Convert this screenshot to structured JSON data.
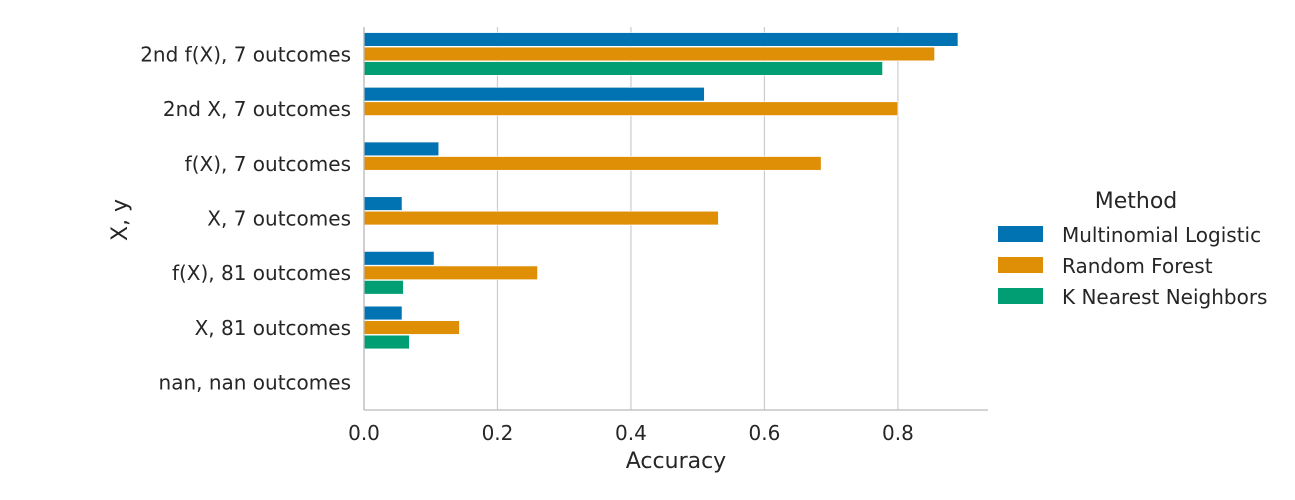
{
  "chart_data": {
    "type": "bar",
    "orientation": "horizontal",
    "categories": [
      "2nd f(X), 7 outcomes",
      "2nd X, 7 outcomes",
      "f(X), 7 outcomes",
      "X, 7 outcomes",
      "f(X), 81 outcomes",
      "X, 81 outcomes",
      "nan, nan outcomes"
    ],
    "series": [
      {
        "name": "Multinomial Logistic",
        "color": "#0173b2",
        "values": [
          0.89,
          0.51,
          0.112,
          0.057,
          0.105,
          0.057,
          null
        ]
      },
      {
        "name": "Random Forest",
        "color": "#de8f05",
        "values": [
          0.855,
          0.8,
          0.685,
          0.531,
          0.26,
          0.143,
          null
        ]
      },
      {
        "name": "K Nearest Neighbors",
        "color": "#029e73",
        "values": [
          0.777,
          null,
          null,
          null,
          0.059,
          0.068,
          null
        ]
      }
    ],
    "xlabel": "Accuracy",
    "ylabel": "X, y",
    "xlim": [
      0,
      0.935
    ],
    "xticks": [
      "0.0",
      "0.2",
      "0.4",
      "0.6",
      "0.8"
    ],
    "grid": "vertical",
    "legend": {
      "title": "Method",
      "placement": "right"
    }
  }
}
